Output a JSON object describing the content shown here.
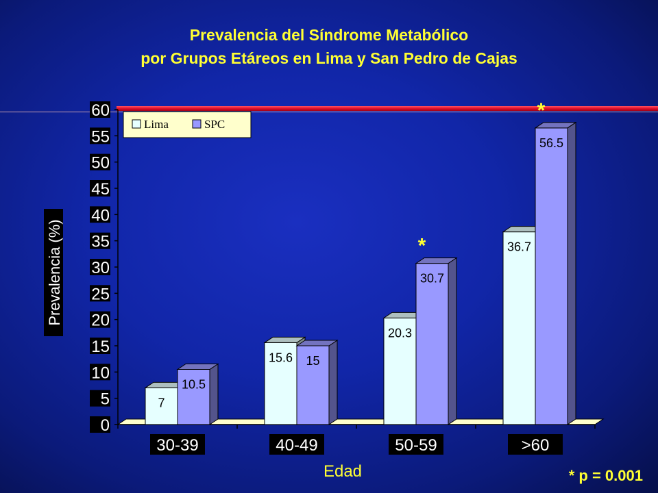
{
  "chart_data": {
    "type": "bar",
    "title": "Prevalencia del Síndrome Metabólico",
    "subtitle": "por Grupos Etáreos en Lima y San Pedro de Cajas",
    "xlabel": "Edad",
    "ylabel": "Prevalencia (%)",
    "categories": [
      "30-39",
      "40-49",
      "50-59",
      ">60"
    ],
    "series": [
      {
        "name": "Lima",
        "values": [
          7,
          15.6,
          20.3,
          36.7
        ],
        "color": "#e6ffff"
      },
      {
        "name": "SPC",
        "values": [
          10.5,
          15,
          30.7,
          56.5
        ],
        "color": "#9999ff"
      }
    ],
    "ylim": [
      0,
      60
    ],
    "yticks": [
      "0",
      "5",
      "10",
      "15",
      "20",
      "25",
      "30",
      "35",
      "40",
      "45",
      "50",
      "55",
      "60"
    ],
    "significance_marker": "*",
    "significant_categories": [
      ">60",
      "50-59"
    ],
    "footnote": "* p = 0.001",
    "legend_position": "top-left",
    "grid": false,
    "background_color": "#1126a8",
    "title_color": "#ffff33"
  }
}
